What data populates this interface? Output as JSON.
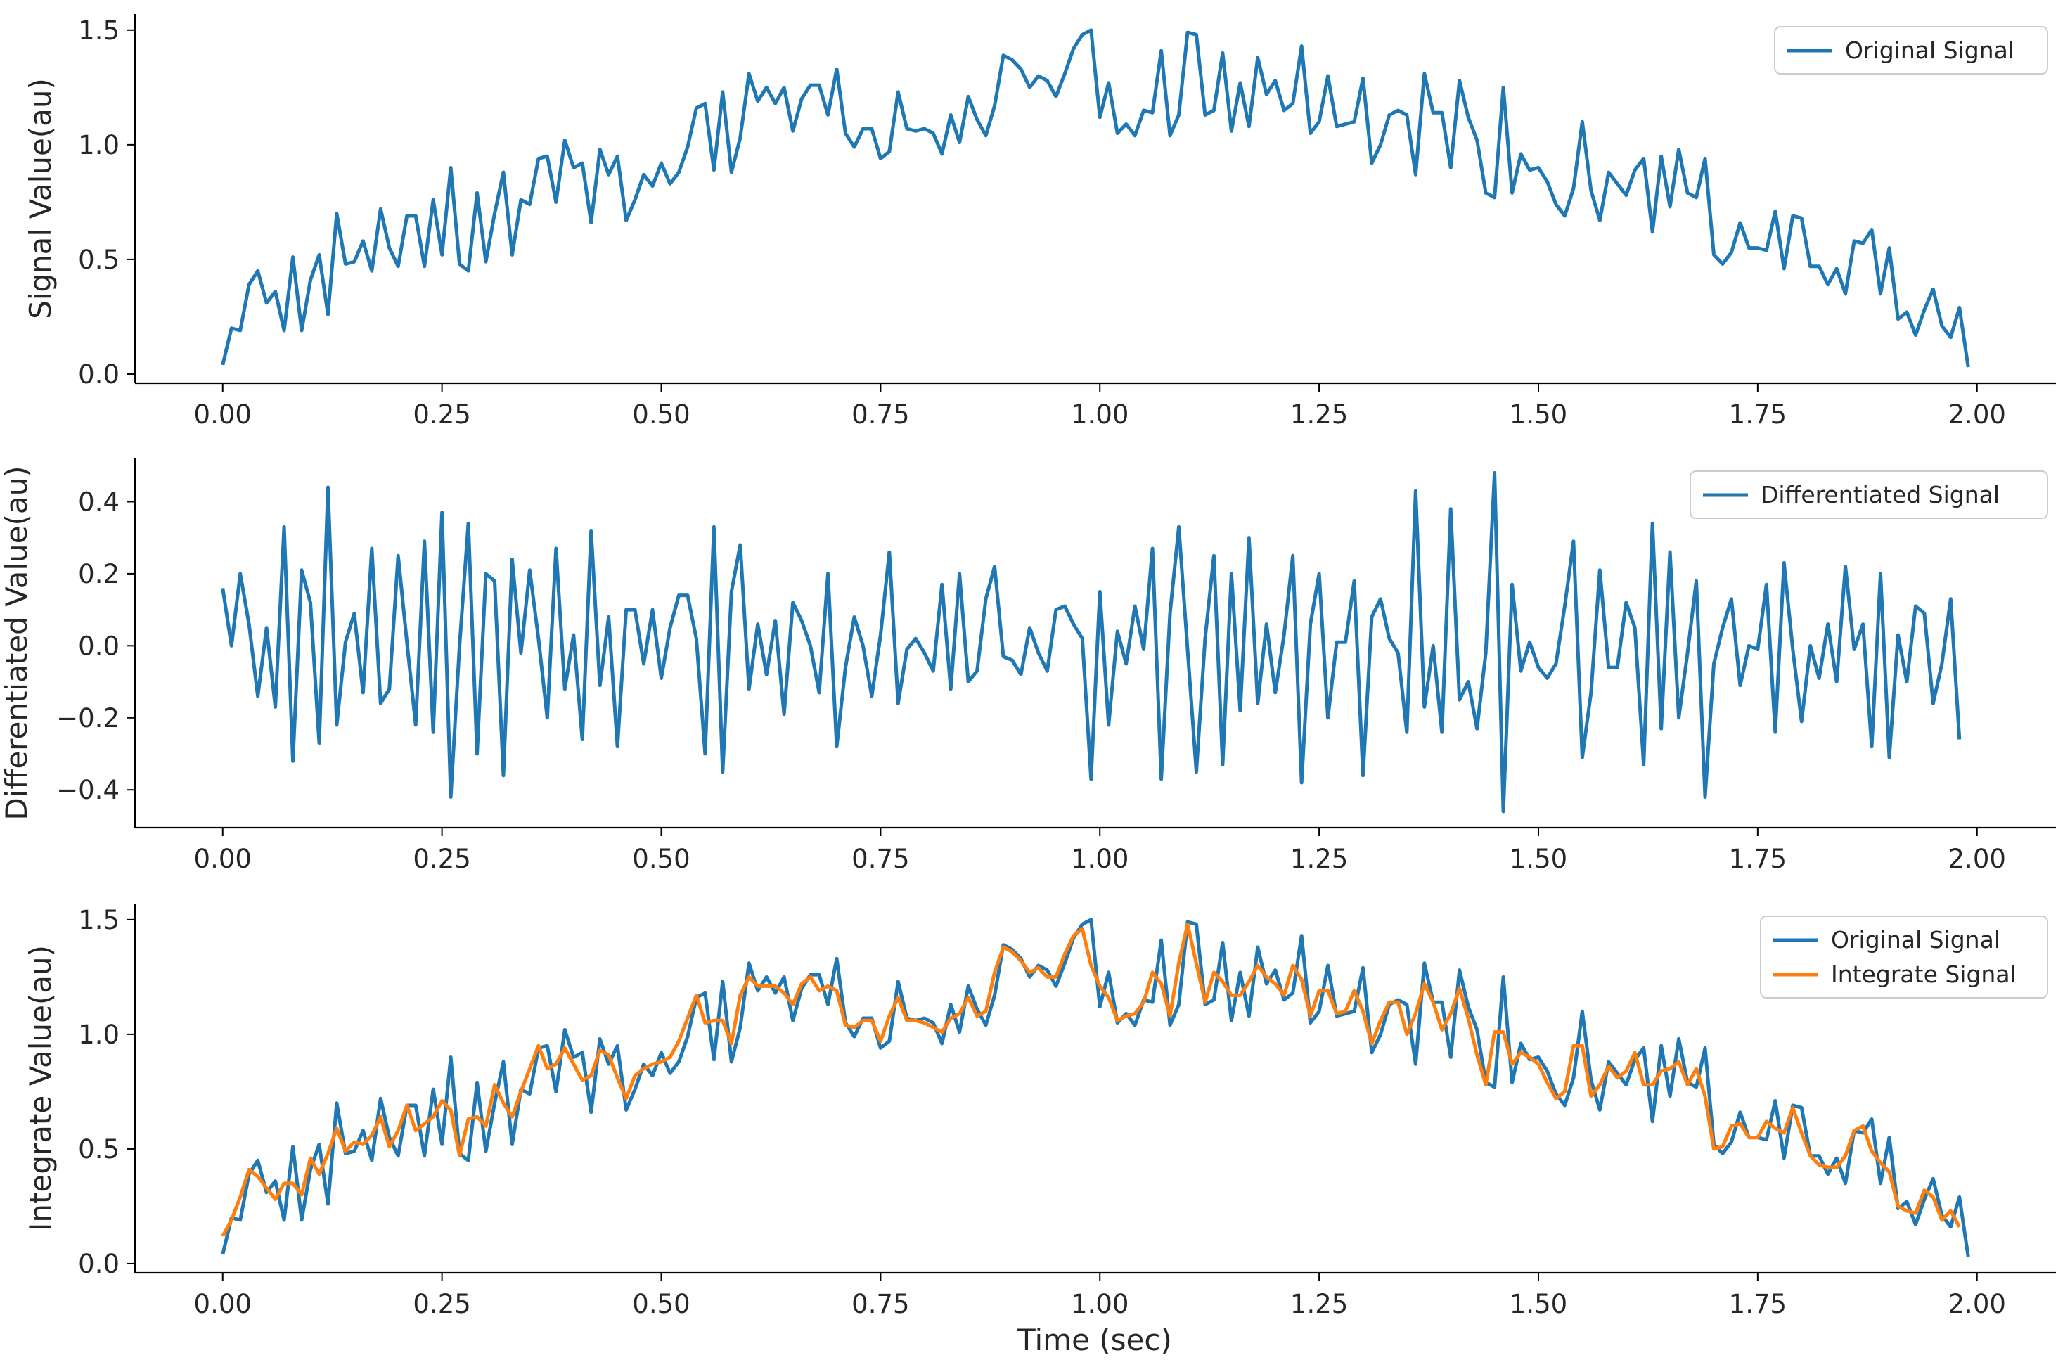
{
  "chart_data": [
    {
      "type": "line",
      "ylabel": "Signal Value(au)",
      "xlabel": "",
      "xlim": [
        -0.1,
        2.09
      ],
      "ylim": [
        -0.04,
        1.57
      ],
      "xticks": [
        "0.00",
        "0.25",
        "0.50",
        "0.75",
        "1.00",
        "1.25",
        "1.50",
        "1.75",
        "2.00"
      ],
      "yticks": [
        "0.0",
        "0.5",
        "1.0",
        "1.5"
      ],
      "legend": "top-right",
      "series": [
        {
          "name": "Original Signal",
          "color": "#1f77b4",
          "dx": 0.01,
          "x0": 0.0,
          "values": [
            0.04,
            0.2,
            0.19,
            0.39,
            0.45,
            0.31,
            0.36,
            0.19,
            0.51,
            0.19,
            0.41,
            0.52,
            0.26,
            0.7,
            0.48,
            0.49,
            0.58,
            0.45,
            0.72,
            0.55,
            0.47,
            0.69,
            0.69,
            0.47,
            0.76,
            0.52,
            0.9,
            0.48,
            0.45,
            0.79,
            0.49,
            0.7,
            0.88,
            0.52,
            0.76,
            0.74,
            0.94,
            0.95,
            0.75,
            1.02,
            0.9,
            0.92,
            0.66,
            0.98,
            0.87,
            0.95,
            0.67,
            0.76,
            0.87,
            0.82,
            0.92,
            0.83,
            0.88,
            0.99,
            1.16,
            1.18,
            0.89,
            1.23,
            0.88,
            1.03,
            1.31,
            1.19,
            1.25,
            1.18,
            1.25,
            1.06,
            1.2,
            1.26,
            1.26,
            1.13,
            1.33,
            1.05,
            0.99,
            1.07,
            1.07,
            0.94,
            0.97,
            1.23,
            1.07,
            1.06,
            1.07,
            1.05,
            0.96,
            1.13,
            1.01,
            1.21,
            1.11,
            1.04,
            1.17,
            1.39,
            1.37,
            1.33,
            1.25,
            1.3,
            1.28,
            1.21,
            1.31,
            1.42,
            1.48,
            1.5,
            1.12,
            1.27,
            1.05,
            1.09,
            1.04,
            1.15,
            1.14,
            1.41,
            1.04,
            1.13,
            1.49,
            1.48,
            1.13,
            1.15,
            1.4,
            1.06,
            1.27,
            1.08,
            1.38,
            1.22,
            1.28,
            1.15,
            1.18,
            1.43,
            1.05,
            1.1,
            1.3,
            1.08,
            1.09,
            1.1,
            1.29,
            0.92,
            1.0,
            1.13,
            1.15,
            1.13,
            0.87,
            1.31,
            1.14,
            1.14,
            0.9,
            1.28,
            1.12,
            1.02,
            0.79,
            0.77,
            1.25,
            0.79,
            0.96,
            0.89,
            0.9,
            0.84,
            0.74,
            0.69,
            0.81,
            1.1,
            0.8,
            0.67,
            0.88,
            0.83,
            0.78,
            0.89,
            0.94,
            0.62,
            0.95,
            0.73,
            0.98,
            0.79,
            0.77,
            0.94,
            0.52,
            0.48,
            0.53,
            0.66,
            0.55,
            0.55,
            0.54,
            0.71,
            0.46,
            0.69,
            0.68,
            0.47,
            0.47,
            0.39,
            0.46,
            0.35,
            0.58,
            0.57,
            0.63,
            0.35,
            0.55,
            0.24,
            0.27,
            0.17,
            0.28,
            0.37,
            0.21,
            0.16,
            0.29,
            0.03
          ]
        }
      ]
    },
    {
      "type": "line",
      "ylabel": "Differentiated Value(au)",
      "xlabel": "",
      "xlim": [
        -0.1,
        2.09
      ],
      "ylim": [
        -0.505,
        0.52
      ],
      "xticks": [
        "0.00",
        "0.25",
        "0.50",
        "0.75",
        "1.00",
        "1.25",
        "1.50",
        "1.75",
        "2.00"
      ],
      "yticks": [
        "−0.4",
        "−0.2",
        "0.0",
        "0.2",
        "0.4"
      ],
      "legend": "top-right",
      "series": [
        {
          "name": "Differentiated Signal",
          "color": "#1f77b4",
          "dx": 0.01,
          "x0": 0.0,
          "values": [
            0.16,
            0.0,
            0.2,
            0.06,
            -0.14,
            0.05,
            -0.17,
            0.33,
            -0.32,
            0.21,
            0.12,
            -0.27,
            0.44,
            -0.22,
            0.01,
            0.09,
            -0.13,
            0.27,
            -0.16,
            -0.12,
            0.25,
            0.01,
            -0.22,
            0.29,
            -0.24,
            0.37,
            -0.42,
            0.0,
            0.34,
            -0.3,
            0.2,
            0.18,
            -0.36,
            0.24,
            -0.02,
            0.21,
            0.02,
            -0.2,
            0.27,
            -0.12,
            0.03,
            -0.26,
            0.32,
            -0.11,
            0.08,
            -0.28,
            0.1,
            0.1,
            -0.05,
            0.1,
            -0.09,
            0.05,
            0.14,
            0.14,
            0.02,
            -0.3,
            0.33,
            -0.35,
            0.15,
            0.28,
            -0.12,
            0.06,
            -0.08,
            0.07,
            -0.19,
            0.12,
            0.07,
            0.0,
            -0.13,
            0.2,
            -0.28,
            -0.06,
            0.08,
            0.0,
            -0.14,
            0.03,
            0.26,
            -0.16,
            -0.01,
            0.02,
            -0.02,
            -0.07,
            0.17,
            -0.12,
            0.2,
            -0.1,
            -0.07,
            0.13,
            0.22,
            -0.03,
            -0.04,
            -0.08,
            0.05,
            -0.02,
            -0.07,
            0.1,
            0.11,
            0.06,
            0.02,
            -0.37,
            0.15,
            -0.22,
            0.04,
            -0.05,
            0.11,
            -0.01,
            0.27,
            -0.37,
            0.09,
            0.33,
            -0.01,
            -0.35,
            0.02,
            0.25,
            -0.33,
            0.2,
            -0.18,
            0.3,
            -0.16,
            0.06,
            -0.13,
            0.03,
            0.25,
            -0.38,
            0.06,
            0.2,
            -0.2,
            0.01,
            0.01,
            0.18,
            -0.36,
            0.08,
            0.13,
            0.02,
            -0.02,
            -0.24,
            0.43,
            -0.17,
            0.0,
            -0.24,
            0.38,
            -0.15,
            -0.1,
            -0.23,
            -0.02,
            0.48,
            -0.46,
            0.17,
            -0.07,
            0.01,
            -0.06,
            -0.09,
            -0.05,
            0.11,
            0.29,
            -0.31,
            -0.13,
            0.21,
            -0.06,
            -0.06,
            0.12,
            0.05,
            -0.33,
            0.34,
            -0.23,
            0.26,
            -0.2,
            -0.02,
            0.18,
            -0.42,
            -0.05,
            0.05,
            0.13,
            -0.11,
            0.0,
            -0.01,
            0.17,
            -0.24,
            0.23,
            -0.01,
            -0.21,
            0.0,
            -0.09,
            0.06,
            -0.1,
            0.22,
            -0.01,
            0.06,
            -0.28,
            0.2,
            -0.31,
            0.03,
            -0.1,
            0.11,
            0.09,
            -0.16,
            -0.05,
            0.13,
            -0.26
          ]
        }
      ]
    },
    {
      "type": "line",
      "ylabel": "Integrate Value(au)",
      "xlabel": "Time (sec)",
      "xlim": [
        -0.1,
        2.09
      ],
      "ylim": [
        -0.04,
        1.57
      ],
      "xticks": [
        "0.00",
        "0.25",
        "0.50",
        "0.75",
        "1.00",
        "1.25",
        "1.50",
        "1.75",
        "2.00"
      ],
      "yticks": [
        "0.0",
        "0.5",
        "1.0",
        "1.5"
      ],
      "legend": "top-right",
      "series": [
        {
          "name": "Original Signal",
          "color": "#1f77b4",
          "dx": 0.01,
          "x0": 0.0,
          "same_as": "chart0.series0"
        },
        {
          "name": "Integrate Signal",
          "color": "#ff7f0e",
          "dx": 0.01,
          "x0": 0.0,
          "values": [
            0.12,
            0.19,
            0.29,
            0.41,
            0.38,
            0.33,
            0.28,
            0.35,
            0.35,
            0.3,
            0.46,
            0.39,
            0.48,
            0.59,
            0.49,
            0.53,
            0.52,
            0.56,
            0.64,
            0.51,
            0.58,
            0.69,
            0.58,
            0.61,
            0.64,
            0.71,
            0.67,
            0.47,
            0.63,
            0.64,
            0.6,
            0.78,
            0.7,
            0.64,
            0.75,
            0.85,
            0.95,
            0.85,
            0.87,
            0.94,
            0.87,
            0.8,
            0.82,
            0.93,
            0.91,
            0.81,
            0.72,
            0.82,
            0.85,
            0.87,
            0.88,
            0.9,
            0.97,
            1.07,
            1.17,
            1.05,
            1.06,
            1.06,
            0.96,
            1.17,
            1.25,
            1.21,
            1.21,
            1.21,
            1.18,
            1.13,
            1.22,
            1.25,
            1.19,
            1.21,
            1.19,
            1.04,
            1.03,
            1.06,
            1.06,
            0.97,
            1.08,
            1.16,
            1.06,
            1.06,
            1.05,
            1.03,
            1.01,
            1.07,
            1.09,
            1.16,
            1.08,
            1.1,
            1.27,
            1.38,
            1.36,
            1.32,
            1.27,
            1.29,
            1.25,
            1.25,
            1.35,
            1.43,
            1.46,
            1.3,
            1.21,
            1.16,
            1.06,
            1.08,
            1.09,
            1.14,
            1.27,
            1.22,
            1.08,
            1.31,
            1.48,
            1.31,
            1.14,
            1.27,
            1.23,
            1.17,
            1.17,
            1.23,
            1.3,
            1.25,
            1.22,
            1.17,
            1.3,
            1.24,
            1.08,
            1.19,
            1.19,
            1.09,
            1.1,
            1.19,
            1.1,
            0.96,
            1.06,
            1.14,
            1.14,
            1.0,
            1.09,
            1.22,
            1.14,
            1.02,
            1.09,
            1.2,
            1.07,
            0.91,
            0.78,
            1.01,
            1.01,
            0.87,
            0.92,
            0.9,
            0.87,
            0.79,
            0.72,
            0.75,
            0.95,
            0.95,
            0.73,
            0.78,
            0.86,
            0.81,
            0.84,
            0.92,
            0.78,
            0.78,
            0.84,
            0.85,
            0.88,
            0.78,
            0.85,
            0.73,
            0.5,
            0.51,
            0.6,
            0.61,
            0.55,
            0.55,
            0.62,
            0.59,
            0.57,
            0.68,
            0.57,
            0.47,
            0.43,
            0.42,
            0.42,
            0.47,
            0.58,
            0.6,
            0.49,
            0.44,
            0.4,
            0.25,
            0.23,
            0.22,
            0.32,
            0.29,
            0.19,
            0.23,
            0.16
          ]
        }
      ]
    }
  ]
}
